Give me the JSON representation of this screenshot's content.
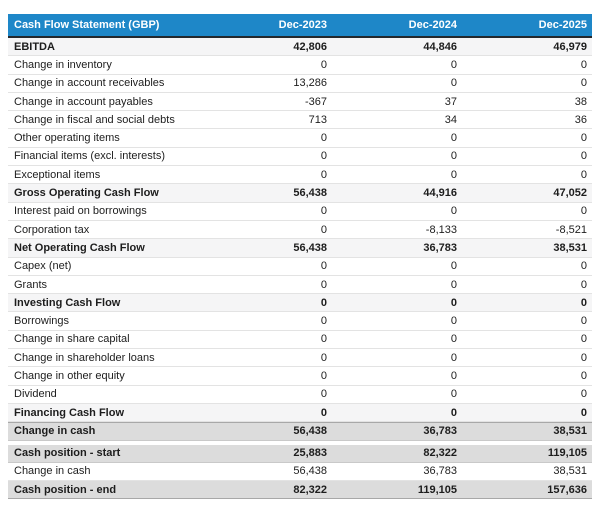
{
  "title": "Cash Flow Statement (GBP)",
  "header": {
    "columns": [
      "Dec-2023",
      "Dec-2024",
      "Dec-2025"
    ]
  },
  "colors": {
    "header_bg": "#1e87c8",
    "header_text": "#ffffff",
    "header_border": "#23282d",
    "subtotal_row_bg": "#f5f5f6",
    "strong_row_bg": "#dcdcdc",
    "row_border": "#e3e3e3",
    "text": "#1d1d1d"
  },
  "rows": [
    {
      "label": "EBITDA",
      "values": [
        "42,806",
        "44,846",
        "46,979"
      ],
      "style": "subtotal"
    },
    {
      "label": "Change in inventory",
      "values": [
        "0",
        "0",
        "0"
      ],
      "style": "normal"
    },
    {
      "label": "Change in account receivables",
      "values": [
        "13,286",
        "0",
        "0"
      ],
      "style": "normal"
    },
    {
      "label": "Change in account payables",
      "values": [
        "-367",
        "37",
        "38"
      ],
      "style": "normal"
    },
    {
      "label": "Change in fiscal and social debts",
      "values": [
        "713",
        "34",
        "36"
      ],
      "style": "normal"
    },
    {
      "label": "Other operating items",
      "values": [
        "0",
        "0",
        "0"
      ],
      "style": "normal"
    },
    {
      "label": "Financial items (excl. interests)",
      "values": [
        "0",
        "0",
        "0"
      ],
      "style": "normal"
    },
    {
      "label": "Exceptional items",
      "values": [
        "0",
        "0",
        "0"
      ],
      "style": "normal"
    },
    {
      "label": "Gross Operating Cash Flow",
      "values": [
        "56,438",
        "44,916",
        "47,052"
      ],
      "style": "subtotal"
    },
    {
      "label": "Interest paid on borrowings",
      "values": [
        "0",
        "0",
        "0"
      ],
      "style": "normal"
    },
    {
      "label": "Corporation tax",
      "values": [
        "0",
        "-8,133",
        "-8,521"
      ],
      "style": "normal"
    },
    {
      "label": "Net Operating Cash Flow",
      "values": [
        "56,438",
        "36,783",
        "38,531"
      ],
      "style": "subtotal"
    },
    {
      "label": "Capex (net)",
      "values": [
        "0",
        "0",
        "0"
      ],
      "style": "normal"
    },
    {
      "label": "Grants",
      "values": [
        "0",
        "0",
        "0"
      ],
      "style": "normal"
    },
    {
      "label": "Investing Cash Flow",
      "values": [
        "0",
        "0",
        "0"
      ],
      "style": "subtotal"
    },
    {
      "label": "Borrowings",
      "values": [
        "0",
        "0",
        "0"
      ],
      "style": "normal"
    },
    {
      "label": "Change in share capital",
      "values": [
        "0",
        "0",
        "0"
      ],
      "style": "normal"
    },
    {
      "label": "Change in shareholder loans",
      "values": [
        "0",
        "0",
        "0"
      ],
      "style": "normal"
    },
    {
      "label": "Change in other equity",
      "values": [
        "0",
        "0",
        "0"
      ],
      "style": "normal"
    },
    {
      "label": "Dividend",
      "values": [
        "0",
        "0",
        "0"
      ],
      "style": "normal"
    },
    {
      "label": "Financing Cash Flow",
      "values": [
        "0",
        "0",
        "0"
      ],
      "style": "subtotal"
    },
    {
      "label": "Change in cash",
      "values": [
        "56,438",
        "36,783",
        "38,531"
      ],
      "style": "strong"
    },
    {
      "label": "Cash position - start",
      "values": [
        "25,883",
        "82,322",
        "119,105"
      ],
      "style": "strong",
      "section_break_before": true
    },
    {
      "label": "Change in cash",
      "values": [
        "56,438",
        "36,783",
        "38,531"
      ],
      "style": "normal"
    },
    {
      "label": "Cash position - end",
      "values": [
        "82,322",
        "119,105",
        "157,636"
      ],
      "style": "strong"
    }
  ],
  "chart_data": {
    "type": "table",
    "title": "Cash Flow Statement (GBP)",
    "columns": [
      "Dec-2023",
      "Dec-2024",
      "Dec-2025"
    ],
    "rows": [
      {
        "label": "EBITDA",
        "values": [
          42806,
          44846,
          46979
        ],
        "emphasis": "subtotal"
      },
      {
        "label": "Change in inventory",
        "values": [
          0,
          0,
          0
        ],
        "emphasis": "normal"
      },
      {
        "label": "Change in account receivables",
        "values": [
          13286,
          0,
          0
        ],
        "emphasis": "normal"
      },
      {
        "label": "Change in account payables",
        "values": [
          -367,
          37,
          38
        ],
        "emphasis": "normal"
      },
      {
        "label": "Change in fiscal and social debts",
        "values": [
          713,
          34,
          36
        ],
        "emphasis": "normal"
      },
      {
        "label": "Other operating items",
        "values": [
          0,
          0,
          0
        ],
        "emphasis": "normal"
      },
      {
        "label": "Financial items (excl. interests)",
        "values": [
          0,
          0,
          0
        ],
        "emphasis": "normal"
      },
      {
        "label": "Exceptional items",
        "values": [
          0,
          0,
          0
        ],
        "emphasis": "normal"
      },
      {
        "label": "Gross Operating Cash Flow",
        "values": [
          56438,
          44916,
          47052
        ],
        "emphasis": "subtotal"
      },
      {
        "label": "Interest paid on borrowings",
        "values": [
          0,
          0,
          0
        ],
        "emphasis": "normal"
      },
      {
        "label": "Corporation tax",
        "values": [
          0,
          -8133,
          -8521
        ],
        "emphasis": "normal"
      },
      {
        "label": "Net Operating Cash Flow",
        "values": [
          56438,
          36783,
          38531
        ],
        "emphasis": "subtotal"
      },
      {
        "label": "Capex (net)",
        "values": [
          0,
          0,
          0
        ],
        "emphasis": "normal"
      },
      {
        "label": "Grants",
        "values": [
          0,
          0,
          0
        ],
        "emphasis": "normal"
      },
      {
        "label": "Investing Cash Flow",
        "values": [
          0,
          0,
          0
        ],
        "emphasis": "subtotal"
      },
      {
        "label": "Borrowings",
        "values": [
          0,
          0,
          0
        ],
        "emphasis": "normal"
      },
      {
        "label": "Change in share capital",
        "values": [
          0,
          0,
          0
        ],
        "emphasis": "normal"
      },
      {
        "label": "Change in shareholder loans",
        "values": [
          0,
          0,
          0
        ],
        "emphasis": "normal"
      },
      {
        "label": "Change in other equity",
        "values": [
          0,
          0,
          0
        ],
        "emphasis": "normal"
      },
      {
        "label": "Dividend",
        "values": [
          0,
          0,
          0
        ],
        "emphasis": "normal"
      },
      {
        "label": "Financing Cash Flow",
        "values": [
          0,
          0,
          0
        ],
        "emphasis": "subtotal"
      },
      {
        "label": "Change in cash",
        "values": [
          56438,
          36783,
          38531
        ],
        "emphasis": "strong"
      },
      {
        "label": "Cash position - start",
        "values": [
          25883,
          82322,
          119105
        ],
        "emphasis": "strong"
      },
      {
        "label": "Change in cash",
        "values": [
          56438,
          36783,
          38531
        ],
        "emphasis": "normal"
      },
      {
        "label": "Cash position - end",
        "values": [
          82322,
          119105,
          157636
        ],
        "emphasis": "strong"
      }
    ]
  }
}
